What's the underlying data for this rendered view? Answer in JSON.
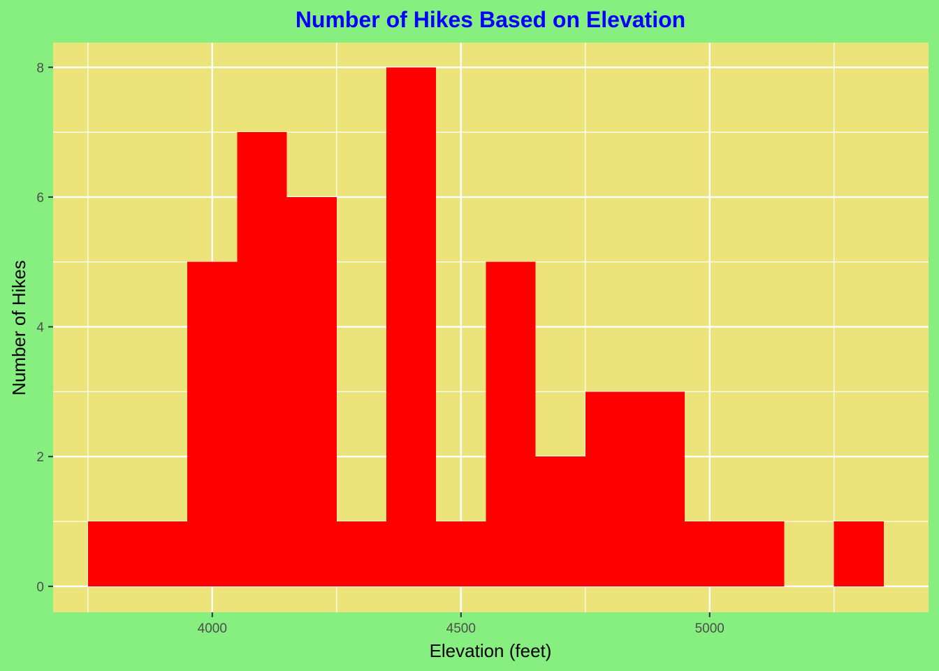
{
  "chart_data": {
    "type": "bar",
    "title": "Number of Hikes Based on Elevation",
    "xlabel": "Elevation (feet)",
    "ylabel": "Number of Hikes",
    "bin_width": 100,
    "bins": [
      {
        "x_start": 3750,
        "x_end": 3850,
        "count": 1
      },
      {
        "x_start": 3850,
        "x_end": 3950,
        "count": 1
      },
      {
        "x_start": 3950,
        "x_end": 4050,
        "count": 5
      },
      {
        "x_start": 4050,
        "x_end": 4150,
        "count": 7
      },
      {
        "x_start": 4150,
        "x_end": 4250,
        "count": 6
      },
      {
        "x_start": 4250,
        "x_end": 4350,
        "count": 1
      },
      {
        "x_start": 4350,
        "x_end": 4450,
        "count": 8
      },
      {
        "x_start": 4450,
        "x_end": 4550,
        "count": 1
      },
      {
        "x_start": 4550,
        "x_end": 4650,
        "count": 5
      },
      {
        "x_start": 4650,
        "x_end": 4750,
        "count": 2
      },
      {
        "x_start": 4750,
        "x_end": 4850,
        "count": 3
      },
      {
        "x_start": 4850,
        "x_end": 4950,
        "count": 3
      },
      {
        "x_start": 4950,
        "x_end": 5050,
        "count": 1
      },
      {
        "x_start": 5050,
        "x_end": 5150,
        "count": 1
      },
      {
        "x_start": 5150,
        "x_end": 5250,
        "count": 0
      },
      {
        "x_start": 5250,
        "x_end": 5350,
        "count": 1
      }
    ],
    "xlim": [
      3680,
      5440
    ],
    "ylim": [
      -0.4,
      8.38
    ],
    "x_ticks": [
      4000,
      4500,
      5000
    ],
    "x_minor_ticks": [
      3750,
      4250,
      4750,
      5250
    ],
    "y_ticks": [
      0,
      2,
      4,
      6,
      8
    ],
    "y_minor_ticks": [
      1,
      3,
      5,
      7
    ],
    "grid": true,
    "colors": {
      "background": "#86ef80",
      "panel": "#ece37b",
      "bar": "#ff0000",
      "grid": "#ffffff",
      "title": "#0000ff"
    }
  }
}
